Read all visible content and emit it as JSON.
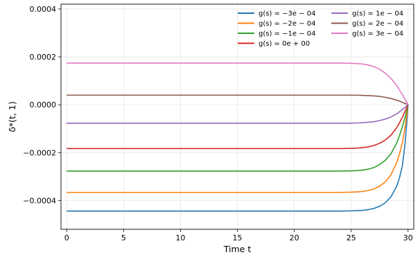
{
  "chart_data": {
    "type": "line",
    "xlabel": "Time t",
    "ylabel": "δ*(t, 1)",
    "xlim": [
      -0.5,
      30.5
    ],
    "ylim": [
      -0.00052,
      0.00042
    ],
    "xticks": [
      0,
      5,
      10,
      15,
      20,
      25,
      30
    ],
    "yticks": [
      -0.0004,
      -0.0002,
      0.0,
      0.0002,
      0.0004
    ],
    "ytick_labels": [
      "−0.0004",
      "−0.0002",
      "0.0000",
      "0.0002",
      "0.0004"
    ],
    "grid": true,
    "legend_position": "top-right",
    "legend_columns": 2,
    "x": [
      0,
      1,
      2,
      3,
      4,
      5,
      6,
      7,
      8,
      9,
      10,
      11,
      12,
      13,
      14,
      15,
      16,
      17,
      18,
      19,
      20,
      21,
      22,
      23,
      24,
      25,
      25.5,
      26,
      26.5,
      27,
      27.5,
      28,
      28.5,
      29,
      29.25,
      29.5,
      29.75,
      30
    ],
    "series": [
      {
        "name": "g(s) = −3e − 04",
        "color": "#1f77b4",
        "values": [
          -0.000444,
          -0.000444,
          -0.000444,
          -0.000444,
          -0.000444,
          -0.000444,
          -0.000444,
          -0.000444,
          -0.000444,
          -0.000444,
          -0.000444,
          -0.000444,
          -0.000444,
          -0.000444,
          -0.000444,
          -0.000444,
          -0.000444,
          -0.000444,
          -0.000444,
          -0.000444,
          -0.000444,
          -0.000444,
          -0.000444,
          -0.000444,
          -0.000444,
          -0.000443,
          -0.000442,
          -0.000441,
          -0.000438,
          -0.000433,
          -0.000424,
          -0.000409,
          -0.000384,
          -0.00034,
          -0.000304,
          -0.000255,
          -0.000156,
          0.0
        ]
      },
      {
        "name": "g(s) = −2e − 04",
        "color": "#ff7f0e",
        "values": [
          -0.000366,
          -0.000366,
          -0.000366,
          -0.000366,
          -0.000366,
          -0.000366,
          -0.000366,
          -0.000366,
          -0.000366,
          -0.000366,
          -0.000366,
          -0.000366,
          -0.000366,
          -0.000366,
          -0.000366,
          -0.000366,
          -0.000366,
          -0.000366,
          -0.000366,
          -0.000366,
          -0.000366,
          -0.000366,
          -0.000366,
          -0.000366,
          -0.000366,
          -0.000365,
          -0.000364,
          -0.000362,
          -0.000358,
          -0.000352,
          -0.00034,
          -0.000322,
          -0.000292,
          -0.000242,
          -0.000205,
          -0.000158,
          -9.2e-05,
          0.0
        ]
      },
      {
        "name": "g(s) = −1e − 04",
        "color": "#2ca02c",
        "values": [
          -0.000277,
          -0.000277,
          -0.000277,
          -0.000277,
          -0.000277,
          -0.000277,
          -0.000277,
          -0.000277,
          -0.000277,
          -0.000277,
          -0.000277,
          -0.000277,
          -0.000277,
          -0.000277,
          -0.000277,
          -0.000277,
          -0.000277,
          -0.000277,
          -0.000277,
          -0.000277,
          -0.000277,
          -0.000277,
          -0.000277,
          -0.000277,
          -0.000277,
          -0.000276,
          -0.000275,
          -0.000273,
          -0.000269,
          -0.000262,
          -0.00025,
          -0.000232,
          -0.000204,
          -0.00016,
          -0.000128,
          -9.2e-05,
          -5e-05,
          0.0
        ]
      },
      {
        "name": "g(s) = 0e + 00",
        "color": "#d62728",
        "values": [
          -0.000183,
          -0.000183,
          -0.000183,
          -0.000183,
          -0.000183,
          -0.000183,
          -0.000183,
          -0.000183,
          -0.000183,
          -0.000183,
          -0.000183,
          -0.000183,
          -0.000183,
          -0.000183,
          -0.000183,
          -0.000183,
          -0.000183,
          -0.000183,
          -0.000183,
          -0.000183,
          -0.000183,
          -0.000183,
          -0.000183,
          -0.000183,
          -0.000183,
          -0.000182,
          -0.000181,
          -0.000179,
          -0.000176,
          -0.00017,
          -0.000161,
          -0.000147,
          -0.000127,
          -9.6e-05,
          -7.5e-05,
          -5.2e-05,
          -2.6e-05,
          0.0
        ]
      },
      {
        "name": "g(s) = 1e − 04",
        "color": "#9467bd",
        "values": [
          -7.7e-05,
          -7.7e-05,
          -7.7e-05,
          -7.7e-05,
          -7.7e-05,
          -7.7e-05,
          -7.7e-05,
          -7.7e-05,
          -7.7e-05,
          -7.7e-05,
          -7.7e-05,
          -7.7e-05,
          -7.7e-05,
          -7.7e-05,
          -7.7e-05,
          -7.7e-05,
          -7.7e-05,
          -7.7e-05,
          -7.7e-05,
          -7.7e-05,
          -7.7e-05,
          -7.7e-05,
          -7.7e-05,
          -7.7e-05,
          -7.7e-05,
          -7.7e-05,
          -7.6e-05,
          -7.5e-05,
          -7.3e-05,
          -7.1e-05,
          -6.6e-05,
          -6e-05,
          -5.1e-05,
          -3.8e-05,
          -2.9e-05,
          -2e-05,
          -1e-05,
          0.0
        ]
      },
      {
        "name": "g(s) = 2e − 04",
        "color": "#8c564b",
        "values": [
          4e-05,
          4e-05,
          4e-05,
          4e-05,
          4e-05,
          4e-05,
          4e-05,
          4e-05,
          4e-05,
          4e-05,
          4e-05,
          4e-05,
          4e-05,
          4e-05,
          4e-05,
          4e-05,
          4e-05,
          4e-05,
          4e-05,
          4e-05,
          4e-05,
          4e-05,
          4e-05,
          4e-05,
          4e-05,
          4e-05,
          4e-05,
          3.9e-05,
          3.8e-05,
          3.7e-05,
          3.5e-05,
          3.1e-05,
          2.6e-05,
          1.9e-05,
          1.5e-05,
          1e-05,
          5e-06,
          0.0
        ]
      },
      {
        "name": "g(s) = 3e − 04",
        "color": "#e377c2",
        "values": [
          0.000174,
          0.000174,
          0.000174,
          0.000174,
          0.000174,
          0.000174,
          0.000174,
          0.000174,
          0.000174,
          0.000174,
          0.000174,
          0.000174,
          0.000174,
          0.000174,
          0.000174,
          0.000174,
          0.000174,
          0.000174,
          0.000174,
          0.000174,
          0.000174,
          0.000174,
          0.000174,
          0.000174,
          0.000174,
          0.000173,
          0.000172,
          0.00017,
          0.000166,
          0.000159,
          0.000148,
          0.000132,
          0.00011,
          8e-05,
          6.1e-05,
          4.2e-05,
          2.1e-05,
          0.0
        ]
      }
    ]
  }
}
